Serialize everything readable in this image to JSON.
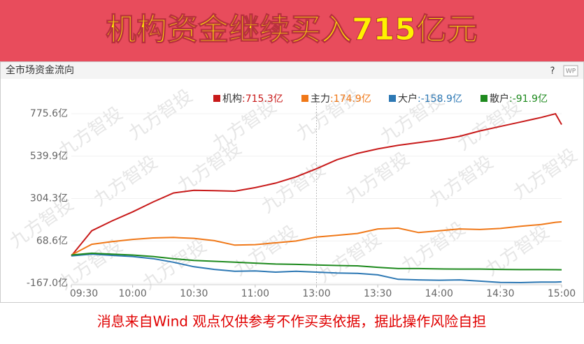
{
  "banner": {
    "title": "机构资金继续买入715亿元"
  },
  "panel": {
    "title": "全市场资金流向",
    "help": "?",
    "badge": "WP",
    "watermark": "九方智投"
  },
  "footer": {
    "disclaimer": "消息来自Wind  观点仅供参考不作买卖依据，据此操作风险自担"
  },
  "chart_data": {
    "type": "line",
    "x": [
      0,
      10,
      20,
      30,
      40,
      50,
      60,
      70,
      80,
      90,
      100,
      110,
      120,
      130,
      140,
      150,
      160,
      170,
      180,
      190,
      200,
      210,
      220,
      230,
      237,
      240
    ],
    "xlim": [
      0,
      240
    ],
    "xticks": [
      {
        "value": 0,
        "label": "09:30"
      },
      {
        "value": 30,
        "label": "10:00"
      },
      {
        "value": 60,
        "label": "10:30"
      },
      {
        "value": 90,
        "label": "11:00"
      },
      {
        "value": 120,
        "label": "13:00"
      },
      {
        "value": 150,
        "label": "13:30"
      },
      {
        "value": 180,
        "label": "14:00"
      },
      {
        "value": 210,
        "label": "14:30"
      },
      {
        "value": 240,
        "label": "15:00"
      }
    ],
    "ylim": [
      -167.0,
      775.6
    ],
    "yticks": [
      {
        "value": -167.0,
        "label": "-167.0亿"
      },
      {
        "value": 68.6,
        "label": "68.6亿"
      },
      {
        "value": 304.3,
        "label": "304.3亿"
      },
      {
        "value": 539.9,
        "label": "539.9亿"
      },
      {
        "value": 775.6,
        "label": "775.6亿"
      }
    ],
    "series": [
      {
        "name": "机构",
        "value_label": ":715.3亿",
        "color": "#c81a1a",
        "values": [
          -15,
          125,
          180,
          230,
          285,
          335,
          350,
          348,
          345,
          365,
          390,
          425,
          470,
          520,
          555,
          580,
          600,
          615,
          630,
          650,
          680,
          705,
          730,
          755,
          775.6,
          715.3
        ]
      },
      {
        "name": "主力",
        "value_label": ":174.9亿",
        "color": "#f07818",
        "values": [
          -10,
          50,
          65,
          77,
          85,
          88,
          83,
          70,
          45,
          48,
          58,
          68,
          90,
          100,
          110,
          135,
          140,
          115,
          125,
          135,
          132,
          138,
          150,
          160,
          172,
          174.9
        ]
      },
      {
        "name": "大户",
        "value_label": ":-158.9亿",
        "color": "#2d78b4",
        "values": [
          -15,
          -5,
          -12,
          -18,
          -30,
          -50,
          -75,
          -90,
          -100,
          -98,
          -105,
          -100,
          -105,
          -110,
          -112,
          -120,
          -145,
          -148,
          -150,
          -148,
          -155,
          -162,
          -163,
          -160,
          -160,
          -158.9
        ]
      },
      {
        "name": "散户",
        "value_label": ":-91.9亿",
        "color": "#1e8a1e",
        "values": [
          -10,
          0,
          -5,
          -10,
          -18,
          -30,
          -40,
          -45,
          -50,
          -55,
          -60,
          -62,
          -65,
          -68,
          -70,
          -78,
          -85,
          -85,
          -87,
          -88,
          -88,
          -90,
          -91,
          -91,
          -91.5,
          -91.9
        ]
      }
    ],
    "grid": true,
    "divider_at": 120
  }
}
